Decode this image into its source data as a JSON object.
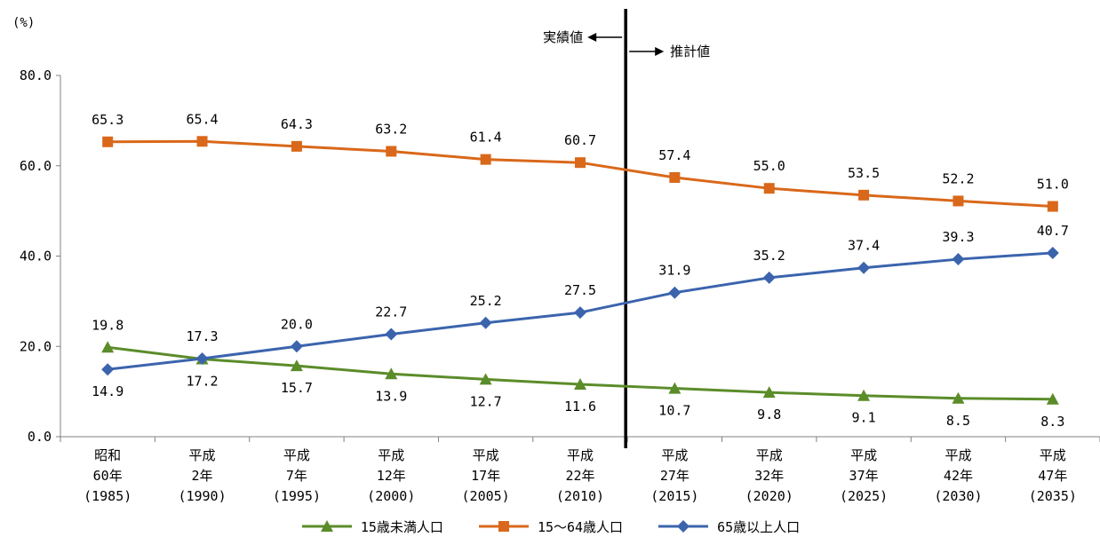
{
  "chart_data": {
    "type": "line",
    "unit_label": "(%)",
    "ylim": [
      0,
      80
    ],
    "yticks": [
      "0.0",
      "20.0",
      "40.0",
      "60.0",
      "80.0"
    ],
    "grid": false,
    "legend_position": "bottom",
    "categories": [
      [
        "昭和",
        "60年",
        "(1985)"
      ],
      [
        "平成",
        "2年",
        "(1990)"
      ],
      [
        "平成",
        "7年",
        "(1995)"
      ],
      [
        "平成",
        "12年",
        "(2000)"
      ],
      [
        "平成",
        "17年",
        "(2005)"
      ],
      [
        "平成",
        "22年",
        "(2010)"
      ],
      [
        "平成",
        "27年",
        "(2015)"
      ],
      [
        "平成",
        "32年",
        "(2020)"
      ],
      [
        "平成",
        "37年",
        "(2025)"
      ],
      [
        "平成",
        "42年",
        "(2030)"
      ],
      [
        "平成",
        "47年",
        "(2035)"
      ]
    ],
    "series": [
      {
        "name": "15歳未満人口",
        "color": "#5b8c2a",
        "marker": "triangle",
        "values": [
          19.8,
          17.2,
          15.7,
          13.9,
          12.7,
          11.6,
          10.7,
          9.8,
          9.1,
          8.5,
          8.3
        ],
        "labels": [
          "19.8",
          "17.2",
          "15.7",
          "13.9",
          "12.7",
          "11.6",
          "10.7",
          "9.8",
          "9.1",
          "8.5",
          "8.3"
        ]
      },
      {
        "name": "15〜64歳人口",
        "color": "#d9681a",
        "marker": "square",
        "values": [
          65.3,
          65.4,
          64.3,
          63.2,
          61.4,
          60.7,
          57.4,
          55.0,
          53.5,
          52.2,
          51.0
        ],
        "labels": [
          "65.3",
          "65.4",
          "64.3",
          "63.2",
          "61.4",
          "60.7",
          "57.4",
          "55.0",
          "53.5",
          "52.2",
          "51.0"
        ]
      },
      {
        "name": "65歳以上人口",
        "color": "#3b64ad",
        "marker": "diamond",
        "values": [
          14.9,
          17.3,
          20.0,
          22.7,
          25.2,
          27.5,
          31.9,
          35.2,
          37.4,
          39.3,
          40.7
        ],
        "labels": [
          "14.9",
          "17.3",
          "20.0",
          "22.7",
          "25.2",
          "27.5",
          "31.9",
          "35.2",
          "37.4",
          "39.3",
          "40.7"
        ]
      }
    ],
    "annotations": {
      "actual_label": "実績値",
      "estimate_label": "推計値"
    }
  }
}
